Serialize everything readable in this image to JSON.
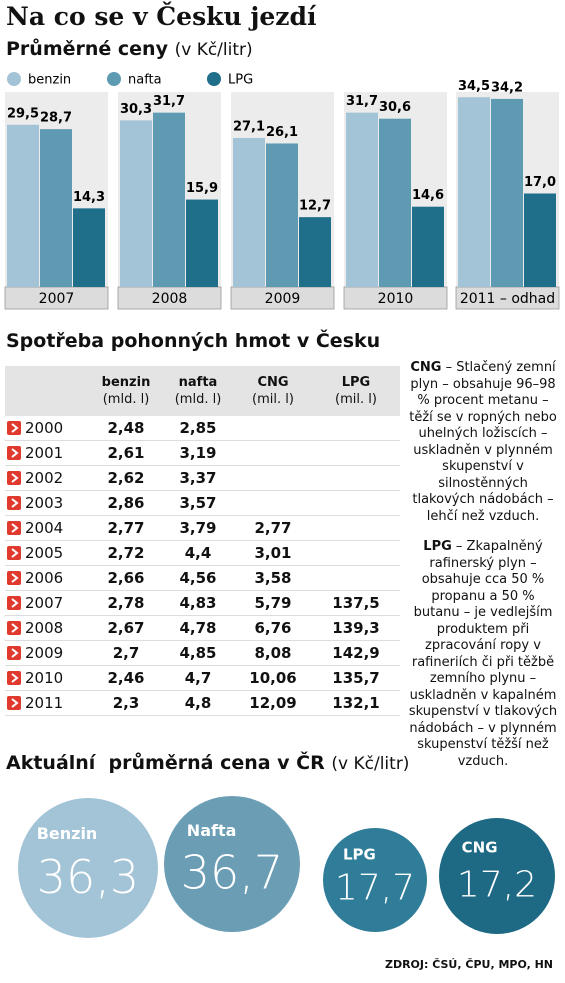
{
  "header": {
    "title": "Na co se v Česku jezdí"
  },
  "chart_data": {
    "type": "bar",
    "title": "Průměrné ceny",
    "subtitle": "(v Kč/litr)",
    "categories": [
      "2007",
      "2008",
      "2009",
      "2010",
      "2011 – odhad"
    ],
    "series": [
      {
        "name": "benzin",
        "color": "#a3c4d6",
        "values": [
          29.5,
          30.3,
          27.1,
          31.7,
          34.5
        ],
        "value_labels": [
          "29,5",
          "30,3",
          "27,1",
          "31,7",
          "34,5"
        ]
      },
      {
        "name": "nafta",
        "color": "#5f9ab3",
        "values": [
          28.7,
          31.7,
          26.1,
          30.6,
          34.2
        ],
        "value_labels": [
          "28,7",
          "31,7",
          "26,1",
          "30,6",
          "34,2"
        ]
      },
      {
        "name": "LPG",
        "color": "#1f6e8a",
        "values": [
          14.3,
          15.9,
          12.7,
          14.6,
          17.0
        ],
        "value_labels": [
          "14,3",
          "15,9",
          "12,7",
          "14,6",
          "17,0"
        ]
      }
    ]
  },
  "table": {
    "title": "Spotřeba pohonných hmot v Česku",
    "header": [
      [
        "benzin",
        "(mld. l)"
      ],
      [
        "nafta",
        "(mld. l)"
      ],
      [
        "CNG",
        "(mil. l)"
      ],
      [
        "LPG",
        "(mil. l)"
      ]
    ],
    "rows": [
      [
        "2000",
        "2,48",
        "2,85",
        null,
        null
      ],
      [
        "2001",
        "2,61",
        "3,19",
        null,
        null
      ],
      [
        "2002",
        "2,62",
        "3,37",
        null,
        null
      ],
      [
        "2003",
        "2,86",
        "3,57",
        null,
        null
      ],
      [
        "2004",
        "2,77",
        "3,79",
        "2,77",
        null
      ],
      [
        "2005",
        "2,72",
        "4,4",
        "3,01",
        null
      ],
      [
        "2006",
        "2,66",
        "4,56",
        "3,58",
        null
      ],
      [
        "2007",
        "2,78",
        "4,83",
        "5,79",
        "137,5"
      ],
      [
        "2008",
        "2,67",
        "4,78",
        "6,76",
        "139,3"
      ],
      [
        "2009",
        "2,7",
        "4,85",
        "8,08",
        "142,9"
      ],
      [
        "2010",
        "2,46",
        "4,7",
        "10,06",
        "135,7"
      ],
      [
        "2011",
        "2,3",
        "4,8",
        "12,09",
        "132,1"
      ]
    ]
  },
  "notes": [
    {
      "term": "CNG",
      "text": "– Stlačený zemní plyn – obsahuje 96–98 % procent metanu – těží se v ropných nebo uhelných ložiscích – uskladněn v plynném skupenství v silnostěnných tlakových nádobách – lehčí než vzduch."
    },
    {
      "term": "LPG",
      "text": "– Zkapalněný rafinerský plyn – obsahuje cca 50 % propanu a 50 % butanu – je vedlejším produktem při zpracování ropy v rafineriích či při těžbě zemního plynu – uskladněn v kapalném skupenství v tlakových nádobách – v plynném skupenství těžší než vzduch."
    }
  ],
  "current": {
    "title": "Aktuální  průměrná cena v ČR",
    "unit": "(v Kč/litr)",
    "items": [
      {
        "name": "Benzin",
        "value": "36,3"
      },
      {
        "name": "Nafta",
        "value": "36,7"
      },
      {
        "name": "LPG",
        "value": "17,7"
      },
      {
        "name": "CNG",
        "value": "17,2"
      }
    ]
  },
  "source": "ZDROJ: ČSÚ, ČPU, MPO, HN"
}
